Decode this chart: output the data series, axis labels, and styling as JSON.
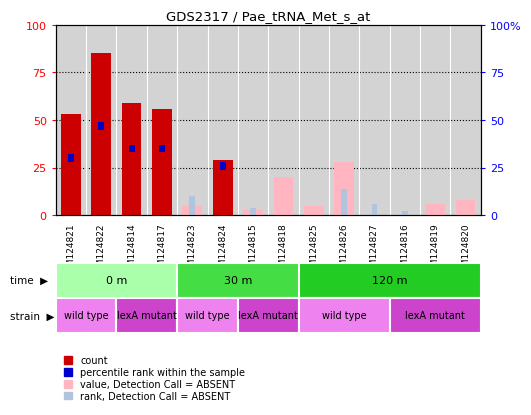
{
  "title": "GDS2317 / Pae_tRNA_Met_s_at",
  "samples": [
    "GSM124821",
    "GSM124822",
    "GSM124814",
    "GSM124817",
    "GSM124823",
    "GSM124824",
    "GSM124815",
    "GSM124818",
    "GSM124825",
    "GSM124826",
    "GSM124827",
    "GSM124816",
    "GSM124819",
    "GSM124820"
  ],
  "count_values": [
    53,
    85,
    59,
    56,
    0,
    29,
    0,
    0,
    0,
    0,
    0,
    0,
    0,
    0
  ],
  "percentile_values": [
    30,
    47,
    35,
    35,
    0,
    26,
    0,
    0,
    0,
    0,
    0,
    0,
    0,
    0
  ],
  "absent_value_vals": [
    0,
    0,
    0,
    0,
    5,
    0,
    3,
    20,
    5,
    28,
    0,
    0,
    6,
    8
  ],
  "absent_rank_vals": [
    0,
    0,
    0,
    0,
    10,
    0,
    4,
    0,
    0,
    14,
    6,
    2,
    0,
    0
  ],
  "detection_absent": [
    false,
    false,
    false,
    false,
    true,
    false,
    true,
    true,
    true,
    true,
    true,
    true,
    true,
    true
  ],
  "time_groups": [
    {
      "label": "0 m",
      "start": 0,
      "end": 4,
      "color": "#AAFFAA"
    },
    {
      "label": "30 m",
      "start": 4,
      "end": 8,
      "color": "#44DD44"
    },
    {
      "label": "120 m",
      "start": 8,
      "end": 14,
      "color": "#22CC22"
    }
  ],
  "strain_groups": [
    {
      "label": "wild type",
      "start": 0,
      "end": 2,
      "color": "#EE82EE"
    },
    {
      "label": "lexA mutant",
      "start": 2,
      "end": 4,
      "color": "#CC44CC"
    },
    {
      "label": "wild type",
      "start": 4,
      "end": 6,
      "color": "#EE82EE"
    },
    {
      "label": "lexA mutant",
      "start": 6,
      "end": 8,
      "color": "#CC44CC"
    },
    {
      "label": "wild type",
      "start": 8,
      "end": 11,
      "color": "#EE82EE"
    },
    {
      "label": "lexA mutant",
      "start": 11,
      "end": 14,
      "color": "#CC44CC"
    }
  ],
  "ylim": [
    0,
    100
  ],
  "yticks": [
    0,
    25,
    50,
    75,
    100
  ],
  "color_count": "#CC0000",
  "color_percentile": "#0000CC",
  "color_absent_value": "#FFB6C1",
  "color_absent_rank": "#B0C4DE",
  "bar_width": 0.65,
  "bg_color": "#D3D3D3"
}
